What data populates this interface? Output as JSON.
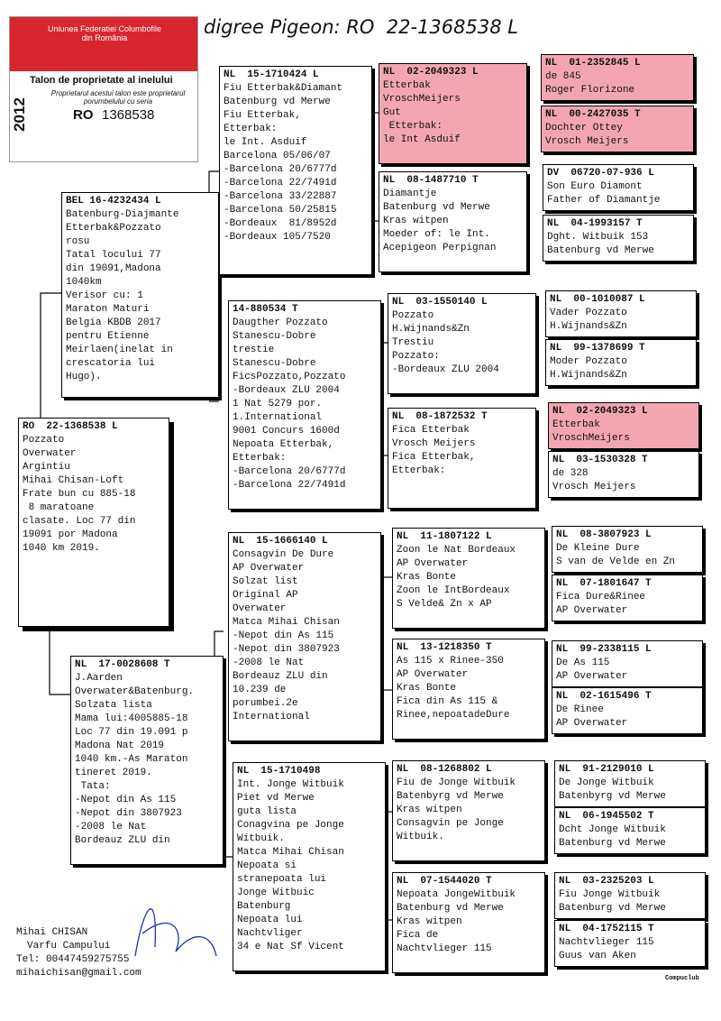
{
  "header": {
    "union": "Uniunea Federatiei Columbofile din România",
    "talon": "Talon de proprietate al inelului",
    "owner_note": "Proprietarul acestui talon este proprietarul porumbelului cu seria",
    "year": "2012",
    "country": "RO",
    "ring": "1368538"
  },
  "title": "digree Pigeon: RO  22-1368538 L",
  "birds": [
    {
      "ring": "RO  22-1368538 L",
      "lines": [
        "Pozzato",
        "Overwater",
        "Argintiu",
        "Mihai Chisan-Loft",
        "Frate bun cu 885-18",
        " 8 maratoane",
        "clasate. Loc 77 din",
        "19091 por Madona",
        "1040 km 2019."
      ]
    },
    {
      "ring": "BEL 16-4232434 L",
      "lines": [
        "Batenburg-Diajmante",
        "Etterbak&Pozzato",
        "rosu",
        "Tatal locului 77",
        "din 19091,Madona",
        "1040km",
        "Verisor cu: 1",
        "Maraton Maturi",
        "Belgia KBDB 2017",
        "pentru Etienne",
        "Meirlaen(inelat in",
        "crescatoria lui",
        "Hugo)."
      ]
    },
    {
      "ring": "NL  17-0028608 T",
      "lines": [
        "J.Aarden",
        "Overwater&Batenburg.",
        "Solzata lista",
        "Mama lui:4005885-18",
        "Loc 77 din 19.091 p",
        "Madona Nat 2019",
        "1040 km.-As Maraton",
        "tineret 2019.",
        " Tata:",
        "-Nepot din As 115",
        "-Nepot din 3807923",
        "-2008 le Nat",
        "Bordeauz ZLU din"
      ]
    },
    {
      "ring": "NL  15-1710424 L",
      "lines": [
        "Fiu Etterbak&Diamant",
        "Batenburg vd Merwe",
        "Fiu Etterbak,",
        "Etterbak:",
        "le Int. Asduif",
        "Barcelona 05/06/07",
        "-Barcelona 20/6777d",
        "-Barcelona 22/7491d",
        "-Barcelona 33/22887",
        "-Barcelona 50/25815",
        "-Bordeaux  81/8952d",
        "-Bordeaux 105/7520"
      ]
    },
    {
      "ring": "14-880534 T",
      "lines": [
        "Daugther Pozzato",
        "Stanescu-Dobre",
        "trestie",
        "Stanescu-Dobre",
        "FicsPozzato,Pozzato",
        "-Bordeaux ZLU 2004",
        "1 Nat 5279 por.",
        "1.International",
        "9001 Concurs 1600d",
        "Nepoata Etterbak,",
        "Etterbak:",
        "-Barcelona 20/6777d",
        "-Barcelona 22/7491d"
      ]
    },
    {
      "ring": "NL  15-1666140 L",
      "lines": [
        "Consagvin De Dure",
        "AP Overwater",
        "Solzat list",
        "Original AP",
        "Overwater",
        "Matca Mihai Chisan",
        "-Nepot din As 115",
        "-Nepot din 3807923",
        "-2008 le Nat",
        "Bordeauz ZLU din",
        "10.239 de",
        "porumbei.2e",
        "International"
      ]
    },
    {
      "ring": "NL  15-1710498",
      "lines": [
        "Int. Jonge Witbuik",
        "Piet vd Merwe",
        "guta lista",
        "Conagvina pe Jonge",
        "Witbuik.",
        "Matca Mihai Chisan",
        "Nepoata si",
        "stranepoata lui",
        "Jonge Witbuic",
        "Batenburg",
        "Nepoata lui",
        "Nachtvliger",
        "34 e Nat Sf Vicent"
      ]
    },
    {
      "ring": "NL  02-2049323 L",
      "lines": [
        "Etterbak",
        "VroschMeijers",
        "Gut",
        " Etterbak:",
        "le Int Asduif"
      ]
    },
    {
      "ring": "NL  08-1487710 T",
      "lines": [
        "Diamantje",
        "Batenburg vd Merwe",
        "Kras witpen",
        "Moeder of: le Int.",
        "Acepigeon Perpignan"
      ]
    },
    {
      "ring": "NL  03-1550140 L",
      "lines": [
        "Pozzato",
        "H.Wijnands&Zn",
        "Trestiu",
        "Pozzato:",
        "-Bordeaux ZLU 2004"
      ]
    },
    {
      "ring": "NL  08-1872532 T",
      "lines": [
        "Fica Etterbak",
        "Vrosch Meijers",
        "Fica Etterbak,",
        "Etterbak:"
      ]
    },
    {
      "ring": "NL  11-1807122 L",
      "lines": [
        "Zoon le Nat Bordeaux",
        "AP Overwater",
        "Kras Bonte",
        "Zoon le IntBordeaux",
        "S Velde& Zn x AP"
      ]
    },
    {
      "ring": "NL  13-1218350 T",
      "lines": [
        "As 115 x Rinee-350",
        "AP Overwater",
        "Kras Bonte",
        "Fica din As 115 &",
        "Rinee,nepoatadeDure"
      ]
    },
    {
      "ring": "NL  08-1268802 L",
      "lines": [
        "Fiu de Jonge Witbuik",
        "Batenbyrg vd Merwe",
        "Kras witpen",
        "Consagvin pe Jonge",
        "Witbuik."
      ]
    },
    {
      "ring": "NL  07-1544020 T",
      "lines": [
        "Nepoata JongeWitbuik",
        "Batenburg vd Merwe",
        "Kras witpen",
        "Fica de",
        "Nachtvlieger 115"
      ]
    },
    {
      "ring": "NL  01-2352845 L",
      "lines": [
        "de 845",
        "Roger Florizone"
      ]
    },
    {
      "ring": "NL  00-2427035 T",
      "lines": [
        "Dochter Ottey",
        "Vrosch Meijers"
      ]
    },
    {
      "ring": "DV  06720-07-936 L",
      "lines": [
        "Son Euro Diamont",
        "Father of Diamantje"
      ]
    },
    {
      "ring": "NL  04-1993157 T",
      "lines": [
        "Dght. Witbuik 153",
        "Batenburg vd Merwe"
      ]
    },
    {
      "ring": "NL  00-1010087 L",
      "lines": [
        "Vader Pozzato",
        "H.Wijnands&Zn"
      ]
    },
    {
      "ring": "NL  99-1378699 T",
      "lines": [
        "Moder Pozzato",
        "H.Wijnands&Zn"
      ]
    },
    {
      "ring": "NL  02-2049323 L",
      "lines": [
        "Etterbak",
        "VroschMeijers"
      ]
    },
    {
      "ring": "NL  03-1530328 T",
      "lines": [
        "de 328",
        "Vrosch Meijers"
      ]
    },
    {
      "ring": "NL  08-3807923 L",
      "lines": [
        "De Kleine Dure",
        "S van de Velde en Zn"
      ]
    },
    {
      "ring": "NL  07-1801647 T",
      "lines": [
        "Fica Dure&Rinee",
        "AP Overwater"
      ]
    },
    {
      "ring": "NL  99-2338115 L",
      "lines": [
        "De As 115",
        "AP Overwater"
      ]
    },
    {
      "ring": "NL  02-1615496 T",
      "lines": [
        "De Rinee",
        "AP Overwater"
      ]
    },
    {
      "ring": "NL  91-2129010 L",
      "lines": [
        "De Jonge Witbuik",
        "Batenbyrg vd Merwe"
      ]
    },
    {
      "ring": "NL  06-1945502 T",
      "lines": [
        "Dcht Jonge Witbuik",
        "Batenburg vd Merwe"
      ]
    },
    {
      "ring": "NL  03-2325203 L",
      "lines": [
        "Fiu Jonge Witbuik",
        "Batenburg vd Merwe"
      ]
    },
    {
      "ring": "NL  04-1752115 T",
      "lines": [
        "Nachtvlieger 115",
        "Guus van Aken"
      ]
    }
  ],
  "footer": {
    "name": "Mihai CHISAN",
    "place": "Varfu Campului",
    "phone": "Tel: 00447459275755",
    "email": "mihaichisan@gmail.com",
    "credit": "Compuclub"
  }
}
